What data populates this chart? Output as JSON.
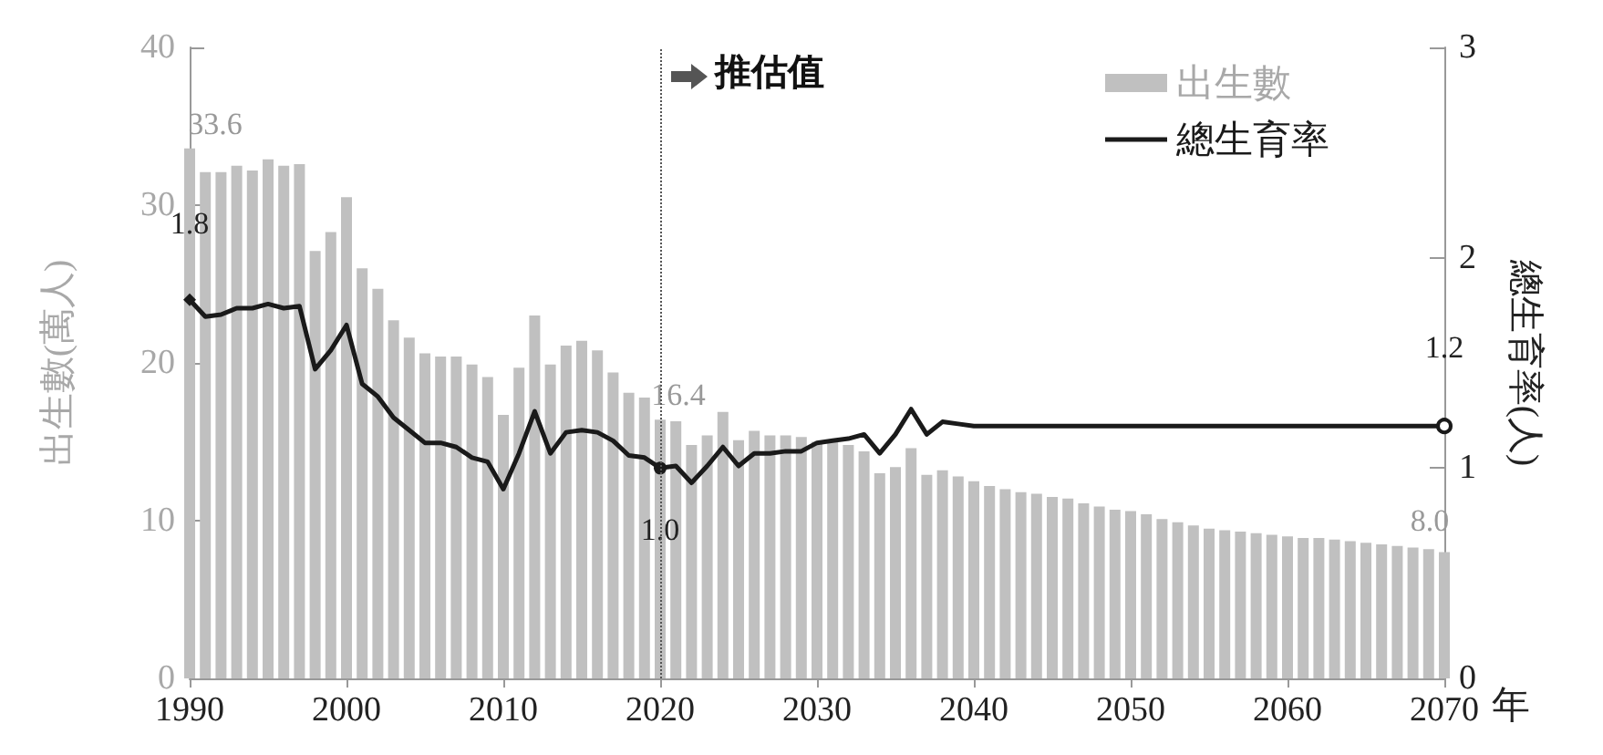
{
  "chart_data": {
    "type": "bar",
    "x": [
      1990,
      1991,
      1992,
      1993,
      1994,
      1995,
      1996,
      1997,
      1998,
      1999,
      2000,
      2001,
      2002,
      2003,
      2004,
      2005,
      2006,
      2007,
      2008,
      2009,
      2010,
      2011,
      2012,
      2013,
      2014,
      2015,
      2016,
      2017,
      2018,
      2019,
      2020,
      2021,
      2022,
      2023,
      2024,
      2025,
      2026,
      2027,
      2028,
      2029,
      2030,
      2031,
      2032,
      2033,
      2034,
      2035,
      2036,
      2037,
      2038,
      2039,
      2040,
      2041,
      2042,
      2043,
      2044,
      2045,
      2046,
      2047,
      2048,
      2049,
      2050,
      2051,
      2052,
      2053,
      2054,
      2055,
      2056,
      2057,
      2058,
      2059,
      2060,
      2061,
      2062,
      2063,
      2064,
      2065,
      2066,
      2067,
      2068,
      2069,
      2070
    ],
    "series": [
      {
        "name": "出生數",
        "color": "#c0c0c0",
        "values": [
          33.6,
          32.1,
          32.1,
          32.5,
          32.2,
          32.9,
          32.5,
          32.6,
          27.1,
          28.3,
          30.5,
          26.0,
          24.7,
          22.7,
          21.6,
          20.6,
          20.4,
          20.4,
          19.9,
          19.1,
          16.7,
          19.7,
          23.0,
          19.9,
          21.1,
          21.4,
          20.8,
          19.4,
          18.1,
          17.8,
          16.4,
          16.3,
          14.8,
          15.4,
          16.9,
          15.1,
          15.7,
          15.4,
          15.4,
          15.3,
          15.0,
          15.0,
          14.8,
          14.4,
          13.0,
          13.4,
          14.6,
          12.9,
          13.2,
          12.8,
          12.5,
          12.2,
          12.0,
          11.8,
          11.7,
          11.5,
          11.4,
          11.1,
          10.9,
          10.7,
          10.6,
          10.4,
          10.1,
          9.9,
          9.7,
          9.5,
          9.4,
          9.3,
          9.2,
          9.1,
          9.0,
          8.9,
          8.9,
          8.8,
          8.7,
          8.6,
          8.5,
          8.4,
          8.3,
          8.2,
          8.0
        ],
        "value_labels": [
          "33.6",
          null,
          null,
          null,
          null,
          null,
          null,
          null,
          null,
          null,
          null,
          null,
          null,
          null,
          null,
          null,
          null,
          null,
          null,
          null,
          null,
          null,
          null,
          null,
          null,
          null,
          null,
          null,
          null,
          null,
          "16.4",
          null,
          null,
          null,
          null,
          null,
          null,
          null,
          null,
          null,
          null,
          null,
          null,
          null,
          null,
          null,
          null,
          null,
          null,
          null,
          null,
          null,
          null,
          null,
          null,
          null,
          null,
          null,
          null,
          null,
          null,
          null,
          null,
          null,
          null,
          null,
          null,
          null,
          null,
          null,
          null,
          null,
          null,
          null,
          null,
          null,
          null,
          null,
          null,
          null,
          "8.0"
        ]
      },
      {
        "name": "總生育率",
        "type": "line",
        "axis": "y2",
        "color": "#1a1a1a",
        "values": [
          1.8,
          1.72,
          1.73,
          1.76,
          1.76,
          1.78,
          1.76,
          1.77,
          1.47,
          1.56,
          1.68,
          1.4,
          1.34,
          1.24,
          1.18,
          1.12,
          1.12,
          1.1,
          1.05,
          1.03,
          0.9,
          1.07,
          1.27,
          1.07,
          1.17,
          1.18,
          1.17,
          1.13,
          1.06,
          1.05,
          1.0,
          1.01,
          0.93,
          1.01,
          1.1,
          1.01,
          1.07,
          1.07,
          1.08,
          1.08,
          1.12,
          1.13,
          1.14,
          1.16,
          1.07,
          1.16,
          1.28,
          1.16,
          1.22,
          1.21,
          1.2,
          1.2,
          1.2,
          1.2,
          1.2,
          1.2,
          1.2,
          1.2,
          1.2,
          1.2,
          1.2,
          1.2,
          1.2,
          1.2,
          1.2,
          1.2,
          1.2,
          1.2,
          1.2,
          1.2,
          1.2,
          1.2,
          1.2,
          1.2,
          1.2,
          1.2,
          1.2,
          1.2,
          1.2,
          1.2,
          1.2
        ],
        "value_labels": [
          "1.8",
          null,
          null,
          null,
          null,
          null,
          null,
          null,
          null,
          null,
          null,
          null,
          null,
          null,
          null,
          null,
          null,
          null,
          null,
          null,
          null,
          null,
          null,
          null,
          null,
          null,
          null,
          null,
          null,
          null,
          "1.0",
          null,
          null,
          null,
          null,
          null,
          null,
          null,
          null,
          null,
          null,
          null,
          null,
          null,
          null,
          null,
          null,
          null,
          null,
          null,
          null,
          null,
          null,
          null,
          null,
          null,
          null,
          null,
          null,
          null,
          null,
          null,
          null,
          null,
          null,
          null,
          null,
          null,
          null,
          null,
          null,
          null,
          null,
          null,
          null,
          null,
          null,
          null,
          null,
          null,
          "1.2"
        ]
      }
    ],
    "xlabel": "年",
    "ylabel": "出生數(萬人)",
    "y2label": "總生育率(人)",
    "xlim": [
      1990,
      2070
    ],
    "xticks": [
      1990,
      2000,
      2010,
      2020,
      2030,
      2040,
      2050,
      2060,
      2070
    ],
    "ylim": [
      0,
      40
    ],
    "yticks": [
      0,
      10,
      20,
      30,
      40
    ],
    "y2lim": [
      0,
      3
    ],
    "y2ticks": [
      0,
      1,
      2,
      3
    ],
    "ref_lines": [
      {
        "axis": "x",
        "value": 2020,
        "label": "推估值",
        "line_style": "dotted",
        "color": "#555555"
      }
    ],
    "legend": "top right",
    "grid": false
  }
}
